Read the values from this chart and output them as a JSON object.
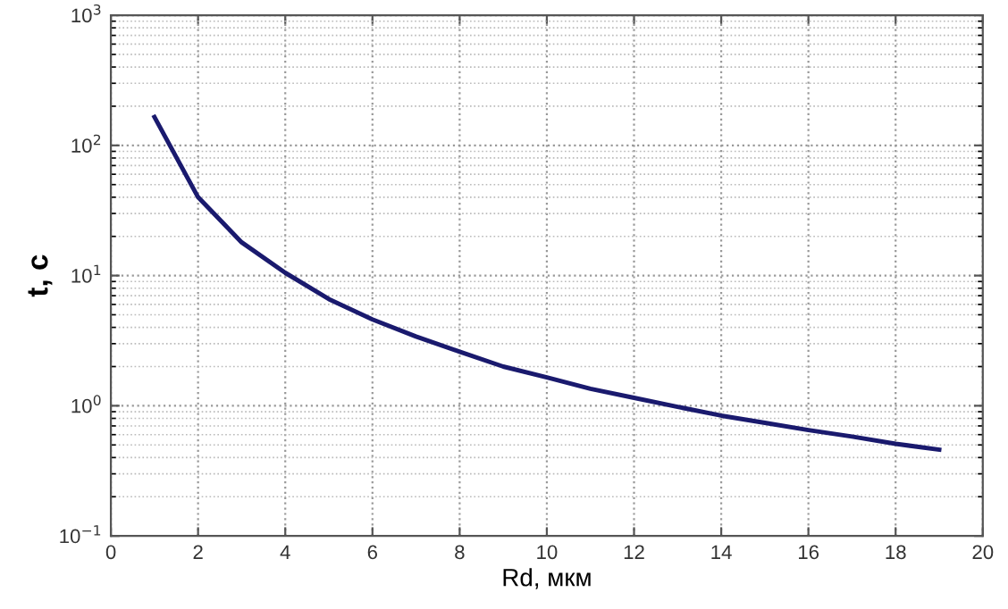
{
  "chart_data": {
    "type": "line",
    "xlabel": "Rd, мкм",
    "ylabel": "t, c",
    "log": "y",
    "x": [
      1,
      2,
      3,
      4,
      5,
      6,
      7,
      8,
      9,
      10,
      11,
      12,
      13,
      14,
      15,
      16,
      17,
      18,
      19
    ],
    "series": [
      {
        "color": "#1a1a6e",
        "values": [
          165,
          40,
          18,
          10.5,
          6.6,
          4.6,
          3.4,
          2.6,
          2.0,
          1.65,
          1.35,
          1.15,
          0.98,
          0.84,
          0.74,
          0.65,
          0.58,
          0.51,
          0.46
        ]
      }
    ],
    "xlim": [
      0,
      20
    ],
    "xticks": [
      0,
      2,
      4,
      6,
      8,
      10,
      12,
      14,
      16,
      18,
      20
    ],
    "ylim": [
      0.1,
      1000
    ],
    "yticks": [
      {
        "value": 0.1,
        "label": "10$^{−1}$"
      },
      {
        "value": 1,
        "label": "10$^{0}$"
      },
      {
        "value": 10,
        "label": "10$^{1}$"
      },
      {
        "value": 100,
        "label": "10$^{2}$"
      },
      {
        "value": 1000,
        "label": "10$^{3}$"
      }
    ],
    "grid": true,
    "line_style": "solid",
    "marker": "none"
  }
}
